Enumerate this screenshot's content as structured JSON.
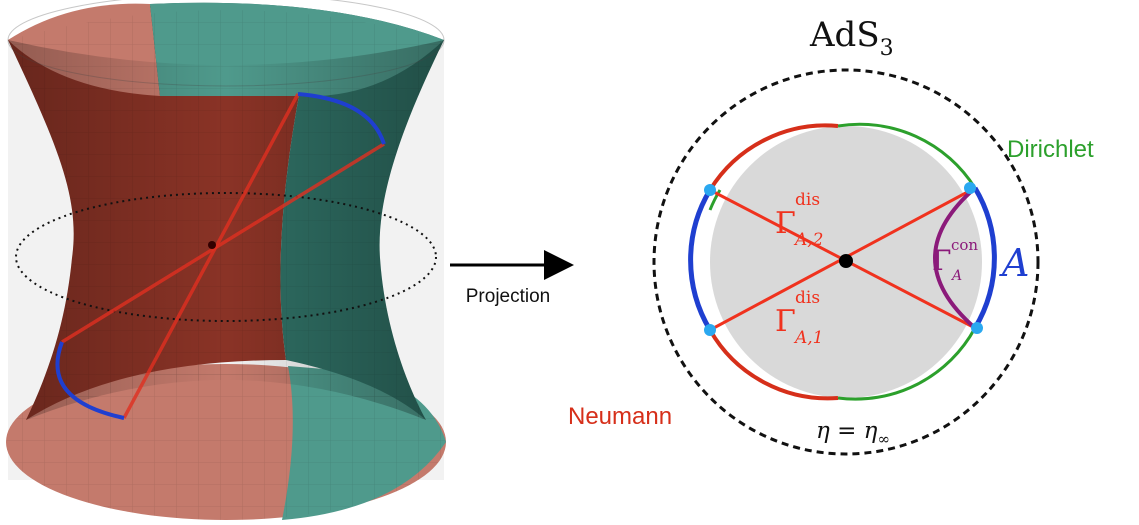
{
  "title": "AdS",
  "title_sub": "3",
  "arrow_label": "Projection",
  "labels": {
    "dirichlet": "Dirichlet",
    "neumann": "Neumann",
    "region_A": "A",
    "gamma_dis_2_main": "Γ",
    "gamma_dis_2_sup": "dis",
    "gamma_dis_2_sub": "A,2",
    "gamma_dis_1_main": "Γ",
    "gamma_dis_1_sup": "dis",
    "gamma_dis_1_sub": "A,1",
    "gamma_con_main": "Γ",
    "gamma_con_sup": "con",
    "gamma_con_sub": "A",
    "eta_lhs": "η = η",
    "eta_sub": "∞"
  },
  "colors": {
    "dirichlet": "#2ca02c",
    "neumann": "#d62f1a",
    "region_A": "#1f3fd0",
    "geodesic": "#f0321e",
    "connected": "#8b1a7a",
    "disk_fill": "#d9d9d9",
    "endpoint": "#2aa8f0",
    "surface_red": "#c47a6c",
    "surface_teal": "#4f9a8c"
  }
}
